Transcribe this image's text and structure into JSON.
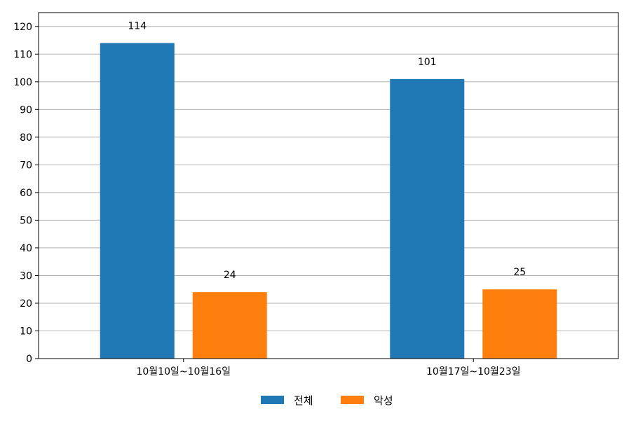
{
  "chart_data": {
    "type": "bar",
    "categories": [
      "10월10일~10월16일",
      "10월17일~10월23일"
    ],
    "series": [
      {
        "name": "전체",
        "values": [
          114,
          101
        ],
        "color": "#1f77b4"
      },
      {
        "name": "악성",
        "values": [
          24,
          25
        ],
        "color": "#ff7f0e"
      }
    ],
    "ylim": [
      0,
      125
    ],
    "yticks": [
      0,
      10,
      20,
      30,
      40,
      50,
      60,
      70,
      80,
      90,
      100,
      110,
      120
    ],
    "grid": true,
    "data_labels": true,
    "legend_position": "bottom-center"
  }
}
